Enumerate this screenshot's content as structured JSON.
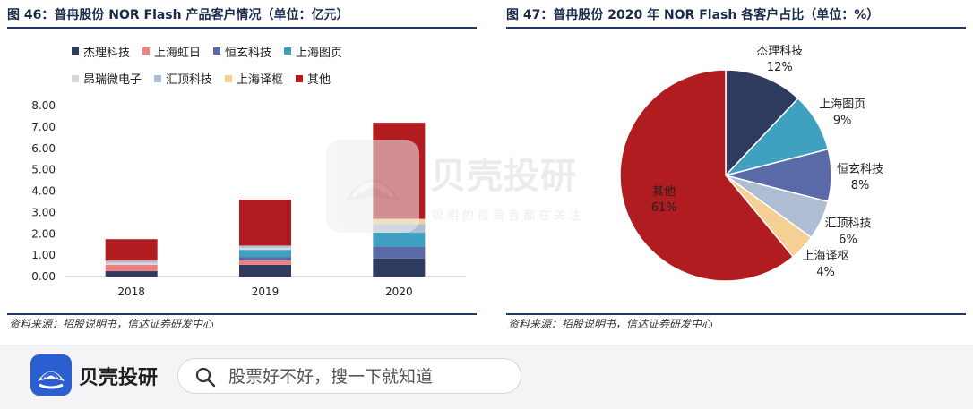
{
  "left_panel": {
    "title": "图 46：普冉股份 NOR Flash 产品客户情况（单位：亿元）",
    "source": "资料来源：招股说明书，信达证券研发中心"
  },
  "right_panel": {
    "title": "图 47：普冉股份 2020 年 NOR Flash 各客户占比（单位：%）",
    "source": "资料来源：招股说明书，信达证券研发中心"
  },
  "watermark": {
    "brand": "贝壳投研",
    "slogan": "聪明的投资者都在关注"
  },
  "bottom_bar": {
    "app_name": "贝壳投研",
    "search_placeholder": "股票好不好，搜一下就知道"
  },
  "colors": {
    "杰理科技": "#2e3b5f",
    "上海虹日": "#f08080",
    "恒玄科技": "#5a6aa8",
    "上海图页": "#3fa0c0",
    "昂瑞微电子": "#d7d7d7",
    "汇顶科技": "#aebdd1",
    "上海译枢": "#f6cf94",
    "其他": "#b01c20",
    "title_rule": "#1f3864",
    "logo": "#2b5fcf"
  },
  "chart_data": [
    {
      "type": "bar",
      "stacked": true,
      "categories": [
        "2018",
        "2019",
        "2020"
      ],
      "ylim": [
        0,
        8
      ],
      "yticks": [
        "0.00",
        "1.00",
        "2.00",
        "3.00",
        "4.00",
        "5.00",
        "6.00",
        "7.00",
        "8.00"
      ],
      "legend": "top",
      "grid": false,
      "series": [
        {
          "name": "杰理科技",
          "values": [
            0.25,
            0.55,
            0.85
          ]
        },
        {
          "name": "上海虹日",
          "values": [
            0.3,
            0.2,
            0.0
          ]
        },
        {
          "name": "恒玄科技",
          "values": [
            0.0,
            0.15,
            0.55
          ]
        },
        {
          "name": "上海图页",
          "values": [
            0.0,
            0.35,
            0.65
          ]
        },
        {
          "name": "昂瑞微电子",
          "values": [
            0.1,
            0.1,
            0.0
          ]
        },
        {
          "name": "汇顶科技",
          "values": [
            0.1,
            0.1,
            0.4
          ]
        },
        {
          "name": "上海译枢",
          "values": [
            0.0,
            0.0,
            0.25
          ]
        },
        {
          "name": "其他",
          "values": [
            1.0,
            2.15,
            4.5
          ]
        }
      ]
    },
    {
      "type": "pie",
      "slices": [
        {
          "name": "杰理科技",
          "value": 12,
          "label": "12%"
        },
        {
          "name": "上海图页",
          "value": 9,
          "label": "9%"
        },
        {
          "name": "恒玄科技",
          "value": 8,
          "label": "8%"
        },
        {
          "name": "汇顶科技",
          "value": 6,
          "label": "6%"
        },
        {
          "name": "上海译枢",
          "value": 4,
          "label": "4%"
        },
        {
          "name": "其他",
          "value": 61,
          "label": "61%"
        }
      ]
    }
  ]
}
